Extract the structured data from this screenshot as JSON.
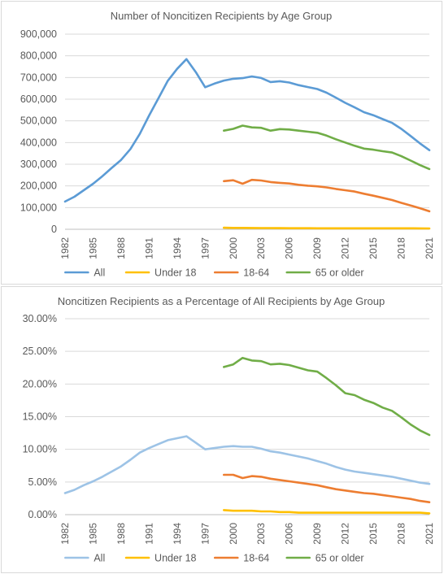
{
  "chart_data": [
    {
      "type": "line",
      "title": "Number of Noncitizen Recipients by Age Group",
      "xlabel": "",
      "ylabel": "",
      "ylim": [
        0,
        900000
      ],
      "y_ticks": [
        "900,000",
        "800,000",
        "700,000",
        "600,000",
        "500,000",
        "400,000",
        "300,000",
        "200,000",
        "100,000",
        "0"
      ],
      "x_tick_labels": [
        "1982",
        "1985",
        "1988",
        "1991",
        "1994",
        "1997",
        "2000",
        "2003",
        "2006",
        "2009",
        "2012",
        "2015",
        "2018",
        "2021"
      ],
      "x_range": [
        1982,
        2021
      ],
      "grid": true,
      "legend_position": "bottom",
      "series": [
        {
          "name": "All",
          "color": "#5b9bd5",
          "x": [
            1982,
            1983,
            1984,
            1985,
            1986,
            1987,
            1988,
            1989,
            1990,
            1991,
            1992,
            1993,
            1994,
            1995,
            1996,
            1997,
            1998,
            1999,
            2000,
            2001,
            2002,
            2003,
            2004,
            2005,
            2006,
            2007,
            2008,
            2009,
            2010,
            2011,
            2012,
            2013,
            2014,
            2015,
            2016,
            2017,
            2018,
            2019,
            2020,
            2021
          ],
          "values": [
            128000,
            150000,
            180000,
            210000,
            245000,
            283000,
            320000,
            370000,
            440000,
            525000,
            605000,
            685000,
            740000,
            785000,
            725000,
            655000,
            672000,
            686000,
            694000,
            697000,
            705000,
            698000,
            679000,
            683000,
            677000,
            665000,
            656000,
            647000,
            630000,
            607000,
            583000,
            562000,
            540000,
            526000,
            508000,
            491000,
            463000,
            430000,
            396000,
            365000
          ]
        },
        {
          "name": "Under 18",
          "color": "#ffc000",
          "x": [
            1999,
            2000,
            2001,
            2002,
            2003,
            2004,
            2005,
            2006,
            2007,
            2008,
            2009,
            2010,
            2011,
            2012,
            2013,
            2014,
            2015,
            2016,
            2017,
            2018,
            2019,
            2020,
            2021
          ],
          "values": [
            7000,
            6500,
            6200,
            6000,
            5800,
            5500,
            5200,
            5000,
            4800,
            4700,
            4600,
            4500,
            4500,
            4500,
            4400,
            4400,
            4400,
            4500,
            4500,
            4500,
            4500,
            4200,
            3800
          ]
        },
        {
          "name": "18-64",
          "color": "#ed7d31",
          "x": [
            1999,
            2000,
            2001,
            2002,
            2003,
            2004,
            2005,
            2006,
            2007,
            2008,
            2009,
            2010,
            2011,
            2012,
            2013,
            2014,
            2015,
            2016,
            2017,
            2018,
            2019,
            2020,
            2021
          ],
          "values": [
            222000,
            226000,
            210000,
            228000,
            225000,
            218000,
            214000,
            211000,
            205000,
            201000,
            198000,
            193000,
            186000,
            180000,
            174000,
            164000,
            155000,
            145000,
            135000,
            122000,
            110000,
            97000,
            83000
          ]
        },
        {
          "name": "65 or older",
          "color": "#70ad47",
          "x": [
            1999,
            2000,
            2001,
            2002,
            2003,
            2004,
            2005,
            2006,
            2007,
            2008,
            2009,
            2010,
            2011,
            2012,
            2013,
            2014,
            2015,
            2016,
            2017,
            2018,
            2019,
            2020,
            2021
          ],
          "values": [
            455000,
            463000,
            478000,
            470000,
            468000,
            455000,
            462000,
            460000,
            455000,
            450000,
            445000,
            432000,
            415000,
            400000,
            385000,
            372000,
            367000,
            360000,
            354000,
            337000,
            317000,
            296000,
            278000
          ]
        }
      ]
    },
    {
      "type": "line",
      "title": "Noncitizen Recipients as a Percentage of All Recipients by Age Group",
      "xlabel": "",
      "ylabel": "",
      "ylim": [
        0,
        30
      ],
      "y_ticks": [
        "30.00%",
        "25.00%",
        "20.00%",
        "15.00%",
        "10.00%",
        "5.00%",
        "0.00%"
      ],
      "x_tick_labels": [
        "1982",
        "1985",
        "1988",
        "1991",
        "1994",
        "1997",
        "2000",
        "2003",
        "2006",
        "2009",
        "2012",
        "2015",
        "2018",
        "2021"
      ],
      "x_range": [
        1982,
        2021
      ],
      "grid": true,
      "legend_position": "bottom",
      "series": [
        {
          "name": "All",
          "color": "#9dc3e6",
          "x": [
            1982,
            1983,
            1984,
            1985,
            1986,
            1987,
            1988,
            1989,
            1990,
            1991,
            1992,
            1993,
            1994,
            1995,
            1996,
            1997,
            1998,
            1999,
            2000,
            2001,
            2002,
            2003,
            2004,
            2005,
            2006,
            2007,
            2008,
            2009,
            2010,
            2011,
            2012,
            2013,
            2014,
            2015,
            2016,
            2017,
            2018,
            2019,
            2020,
            2021
          ],
          "values": [
            3.3,
            3.8,
            4.5,
            5.1,
            5.8,
            6.6,
            7.4,
            8.4,
            9.5,
            10.2,
            10.8,
            11.4,
            11.7,
            12.0,
            11.0,
            10.0,
            10.2,
            10.4,
            10.5,
            10.4,
            10.4,
            10.1,
            9.7,
            9.5,
            9.2,
            8.9,
            8.6,
            8.2,
            7.8,
            7.3,
            6.9,
            6.6,
            6.4,
            6.2,
            6.0,
            5.8,
            5.5,
            5.2,
            4.9,
            4.7
          ]
        },
        {
          "name": "Under 18",
          "color": "#ffc000",
          "x": [
            1999,
            2000,
            2001,
            2002,
            2003,
            2004,
            2005,
            2006,
            2007,
            2008,
            2009,
            2010,
            2011,
            2012,
            2013,
            2014,
            2015,
            2016,
            2017,
            2018,
            2019,
            2020,
            2021
          ],
          "values": [
            0.7,
            0.6,
            0.6,
            0.6,
            0.5,
            0.5,
            0.4,
            0.4,
            0.3,
            0.3,
            0.3,
            0.3,
            0.3,
            0.3,
            0.3,
            0.3,
            0.3,
            0.3,
            0.3,
            0.3,
            0.3,
            0.3,
            0.2
          ]
        },
        {
          "name": "18-64",
          "color": "#ed7d31",
          "x": [
            1999,
            2000,
            2001,
            2002,
            2003,
            2004,
            2005,
            2006,
            2007,
            2008,
            2009,
            2010,
            2011,
            2012,
            2013,
            2014,
            2015,
            2016,
            2017,
            2018,
            2019,
            2020,
            2021
          ],
          "values": [
            6.1,
            6.1,
            5.6,
            5.9,
            5.8,
            5.5,
            5.3,
            5.1,
            4.9,
            4.7,
            4.5,
            4.2,
            3.9,
            3.7,
            3.5,
            3.3,
            3.2,
            3.0,
            2.8,
            2.6,
            2.4,
            2.1,
            1.9
          ]
        },
        {
          "name": "65 or older",
          "color": "#70ad47",
          "x": [
            1999,
            2000,
            2001,
            2002,
            2003,
            2004,
            2005,
            2006,
            2007,
            2008,
            2009,
            2010,
            2011,
            2012,
            2013,
            2014,
            2015,
            2016,
            2017,
            2018,
            2019,
            2020,
            2021
          ],
          "values": [
            22.6,
            23.0,
            24.0,
            23.6,
            23.5,
            23.0,
            23.1,
            22.9,
            22.5,
            22.1,
            21.9,
            20.9,
            19.8,
            18.6,
            18.3,
            17.6,
            17.1,
            16.4,
            15.9,
            14.9,
            13.8,
            12.9,
            12.2
          ]
        }
      ]
    }
  ]
}
